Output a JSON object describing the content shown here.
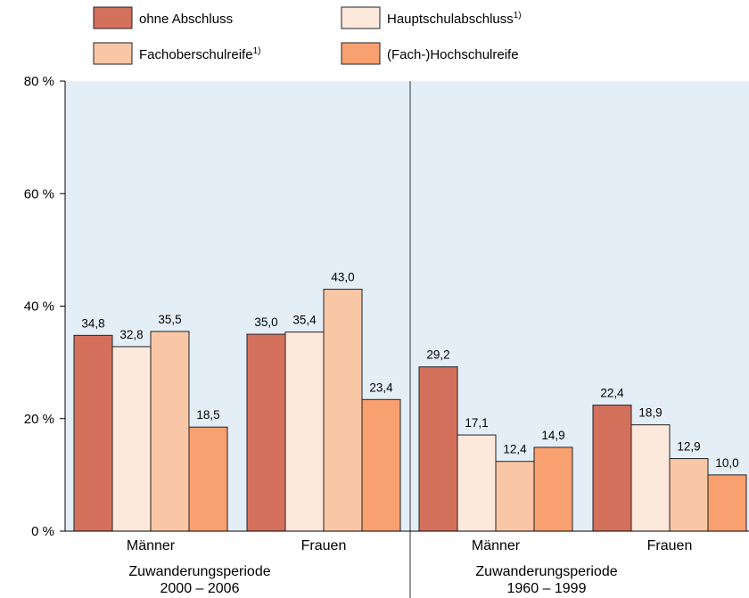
{
  "chart_data": {
    "type": "bar",
    "y_ticks": [
      "0 %",
      "20 %",
      "40 %",
      "60 %",
      "80 %"
    ],
    "ylim": [
      0,
      80
    ],
    "grid": false,
    "legend_position": "top",
    "series": [
      {
        "name": "ohne Abschluss",
        "superscript": "",
        "color": "#d4715c"
      },
      {
        "name": "Hauptschulabschluss",
        "superscript": "1)",
        "color": "#fde8dc"
      },
      {
        "name": "Fachoberschulreife",
        "superscript": "1)",
        "color": "#fac7a6"
      },
      {
        "name": "(Fach-)Hochschulreife",
        "superscript": "",
        "color": "#f9a071"
      }
    ],
    "groups": [
      {
        "label_line1": "Zuwanderungsperiode",
        "label_line2": "2000 – 2006",
        "categories": [
          {
            "label": "Männer",
            "values": [
              34.8,
              32.8,
              35.5,
              18.5
            ],
            "value_labels": [
              "34,8",
              "32,8",
              "35,5",
              "18,5"
            ]
          },
          {
            "label": "Frauen",
            "values": [
              35.0,
              35.4,
              43.0,
              23.4
            ],
            "value_labels": [
              "35,0",
              "35,4",
              "43,0",
              "23,4"
            ]
          }
        ]
      },
      {
        "label_line1": "Zuwanderungsperiode",
        "label_line2": "1960 – 1999",
        "categories": [
          {
            "label": "Männer",
            "values": [
              29.2,
              17.1,
              12.4,
              14.9
            ],
            "value_labels": [
              "29,2",
              "17,1",
              "12,4",
              "14,9"
            ]
          },
          {
            "label": "Frauen",
            "values": [
              22.4,
              18.9,
              12.9,
              10.0
            ],
            "value_labels": [
              "22,4",
              "18,9",
              "12,9",
              "10,0"
            ]
          }
        ]
      }
    ],
    "colors": {
      "plot_background": "#e3eef7",
      "bar_outline": "#222222"
    }
  }
}
